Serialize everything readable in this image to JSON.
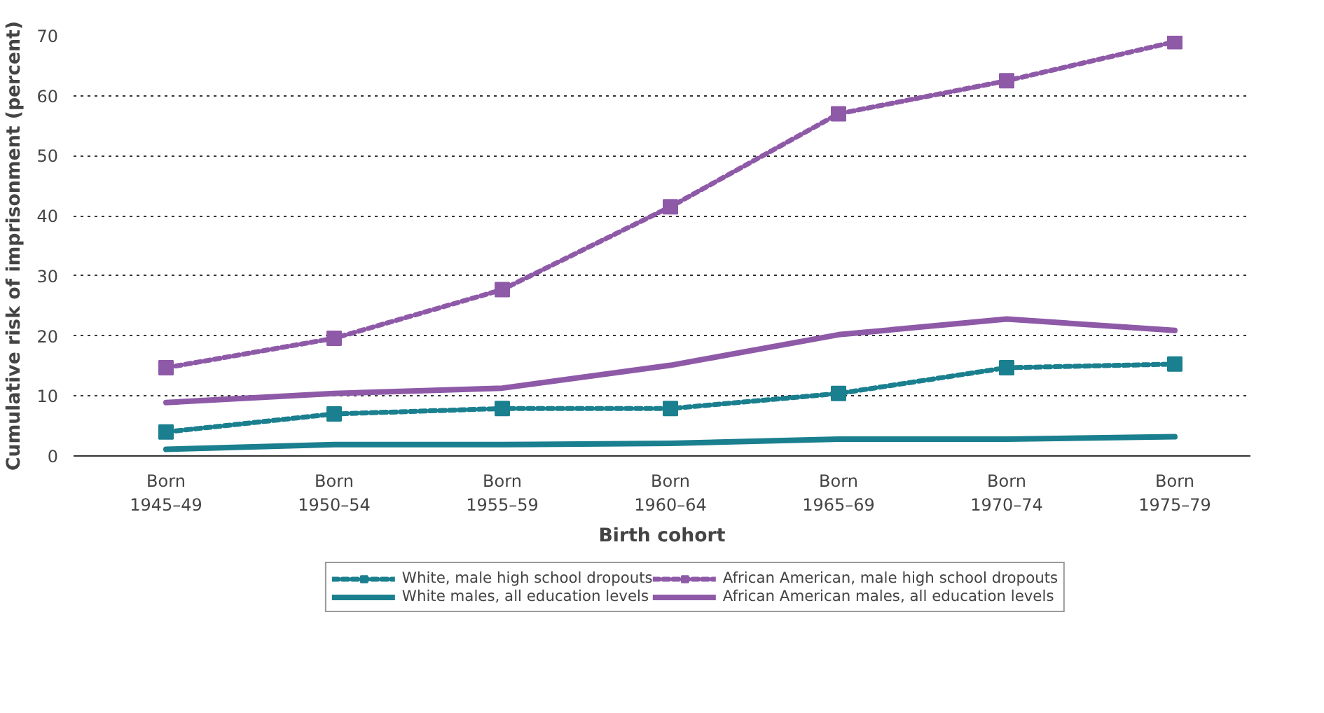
{
  "chart_data": {
    "type": "line",
    "xlabel": "Birth cohort",
    "ylabel": "Cumulative risk of imprisonment (percent)",
    "categories": [
      "Born\n1945–49",
      "Born\n1950–54",
      "Born\n1955–59",
      "Born\n1960–64",
      "Born\n1965–69",
      "Born\n1970–74",
      "Born\n1975–79"
    ],
    "ylim": [
      0,
      70
    ],
    "yticks": [
      0,
      10,
      20,
      30,
      40,
      50,
      60,
      70
    ],
    "grid": "y",
    "legend": "bottom",
    "series": [
      {
        "name": "White, male high school dropouts",
        "color": "#1a7f8e",
        "marker": "square",
        "line_style": "dashed",
        "values": [
          4.0,
          7.0,
          7.9,
          7.9,
          10.4,
          14.7,
          15.3
        ]
      },
      {
        "name": "White males, all education levels",
        "color": "#1a7f8e",
        "marker": "none",
        "line_style": "solid",
        "values": [
          1.1,
          1.9,
          1.9,
          2.1,
          2.8,
          2.8,
          3.2
        ]
      },
      {
        "name": "African American, male high school dropouts",
        "color": "#8e5aa8",
        "marker": "square",
        "line_style": "dashed",
        "values": [
          14.7,
          19.6,
          27.7,
          41.5,
          57.0,
          62.5,
          69.0
        ]
      },
      {
        "name": "African American males, all education levels",
        "color": "#8e5aa8",
        "marker": "none",
        "line_style": "solid",
        "values": [
          8.9,
          10.4,
          11.3,
          15.1,
          20.2,
          22.8,
          20.9
        ]
      }
    ]
  }
}
